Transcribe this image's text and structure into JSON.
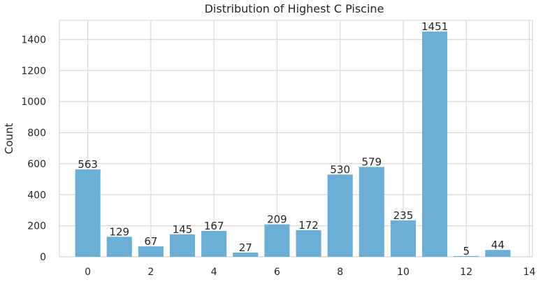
{
  "chart_data": {
    "type": "bar",
    "title": "Distribution of Highest C Piscine",
    "xlabel": "",
    "ylabel": "Count",
    "x": [
      0,
      1,
      2,
      3,
      4,
      5,
      6,
      7,
      8,
      9,
      10,
      11,
      12,
      13
    ],
    "values": [
      563,
      129,
      67,
      145,
      167,
      27,
      209,
      172,
      530,
      579,
      235,
      1451,
      5,
      44
    ],
    "data_labels": [
      "563",
      "129",
      "67",
      "145",
      "167",
      "27",
      "209",
      "172",
      "530",
      "579",
      "235",
      "1451",
      "5",
      "44"
    ],
    "xticks": [
      0,
      2,
      4,
      6,
      8,
      10,
      12,
      14
    ],
    "yticks": [
      0,
      200,
      400,
      600,
      800,
      1000,
      1200,
      1400
    ],
    "xlim": [
      -0.9,
      14.1
    ],
    "ylim": [
      0,
      1523.55
    ],
    "grid": true,
    "bar_color": "#6baed6",
    "grid_color": "#d9d9d9",
    "text_color": "#262626"
  }
}
